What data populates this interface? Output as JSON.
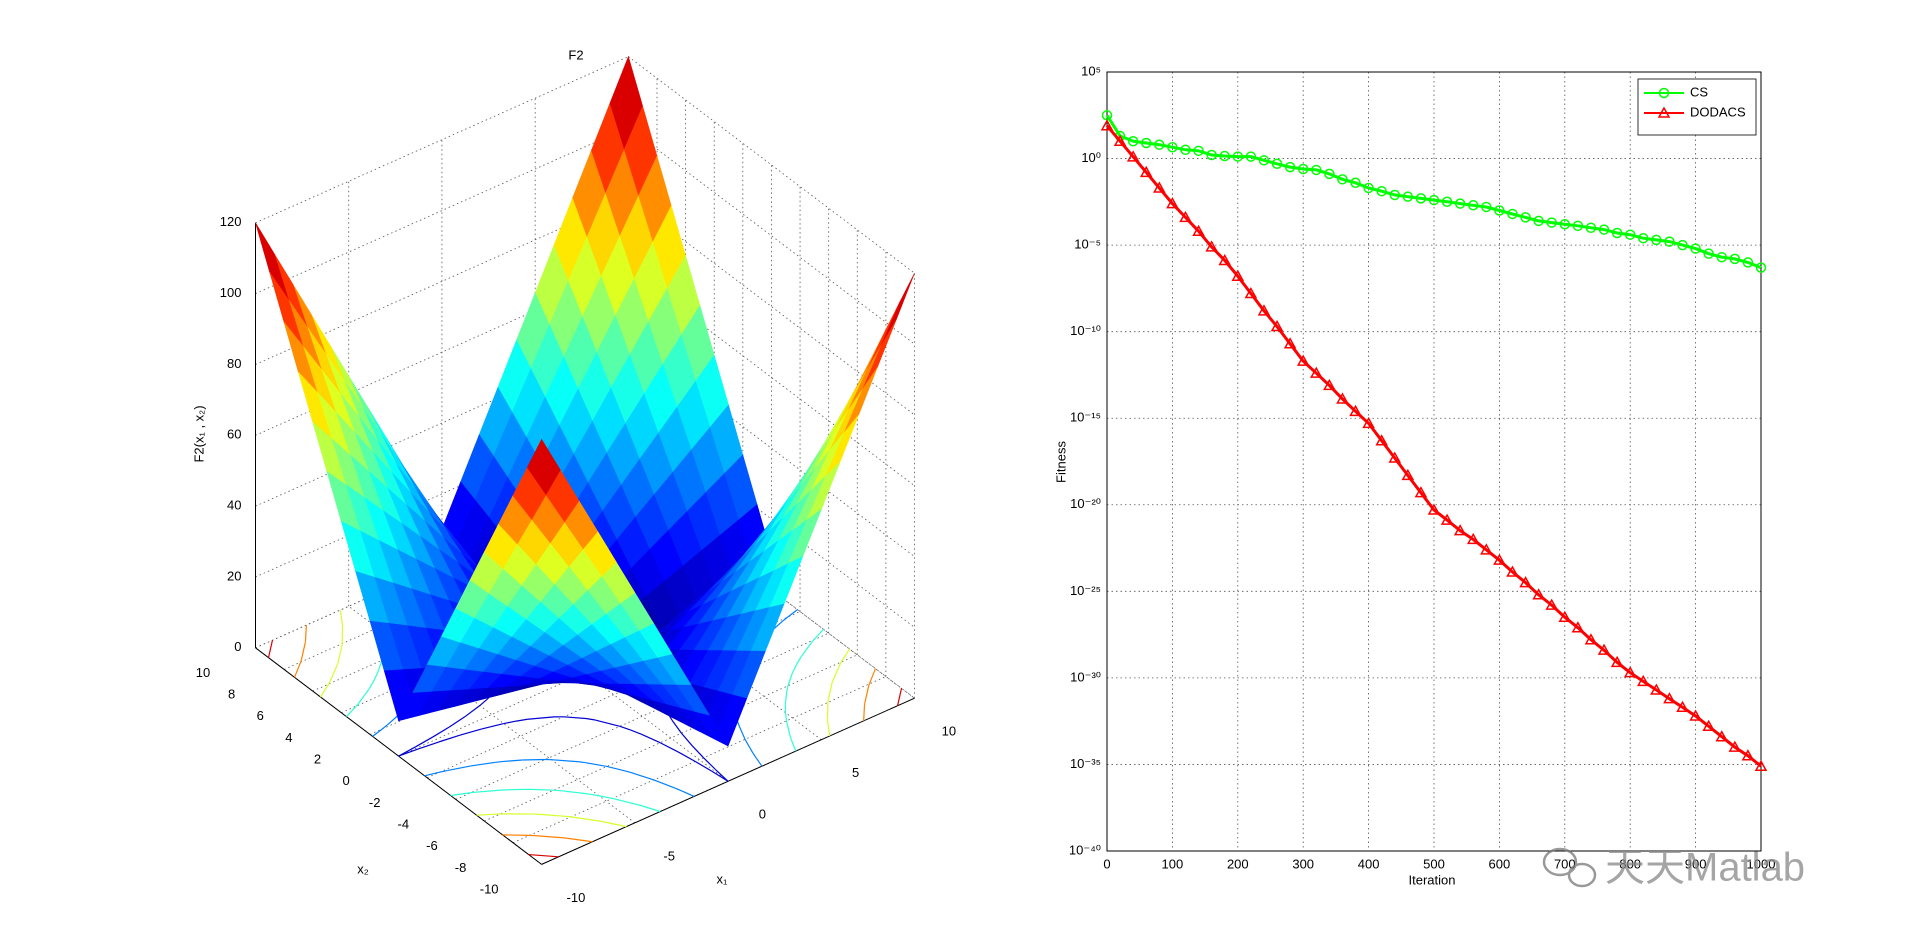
{
  "chart_data": [
    {
      "type": "surface",
      "title": "F2",
      "xlabel": "x₁",
      "ylabel": "x₂",
      "zlabel": "F2(x₁ , x₂)",
      "x": [
        -10,
        -9,
        -8,
        -7,
        -6,
        -5,
        -4,
        -3,
        -2,
        -1,
        0,
        1,
        2,
        3,
        4,
        5,
        6,
        7,
        8,
        9,
        10
      ],
      "y": [
        -10,
        -9,
        -8,
        -7,
        -6,
        -5,
        -4,
        -3,
        -2,
        -1,
        0,
        1,
        2,
        3,
        4,
        5,
        6,
        7,
        8,
        9,
        10
      ],
      "z": [
        [
          120,
          109,
          98,
          87,
          76,
          65,
          54,
          43,
          32,
          21,
          10,
          21,
          32,
          43,
          54,
          65,
          76,
          87,
          98,
          109,
          120
        ],
        [
          109,
          99,
          89,
          79,
          69,
          59,
          49,
          39,
          29,
          19,
          9,
          19,
          29,
          39,
          49,
          59,
          69,
          79,
          89,
          99,
          109
        ],
        [
          98,
          89,
          80,
          71,
          62,
          53,
          44,
          35,
          26,
          17,
          8,
          17,
          26,
          35,
          44,
          53,
          62,
          71,
          80,
          89,
          98
        ],
        [
          87,
          79,
          71,
          63,
          55,
          47,
          39,
          31,
          23,
          15,
          7,
          15,
          23,
          31,
          39,
          47,
          55,
          63,
          71,
          79,
          87
        ],
        [
          76,
          69,
          62,
          55,
          48,
          41,
          34,
          27,
          20,
          13,
          6,
          13,
          20,
          27,
          34,
          41,
          48,
          55,
          62,
          69,
          76
        ],
        [
          65,
          59,
          53,
          47,
          41,
          35,
          29,
          23,
          17,
          11,
          5,
          11,
          17,
          23,
          29,
          35,
          41,
          47,
          53,
          59,
          65
        ],
        [
          54,
          49,
          44,
          39,
          34,
          29,
          24,
          19,
          14,
          9,
          4,
          9,
          14,
          19,
          24,
          29,
          34,
          39,
          44,
          49,
          54
        ],
        [
          43,
          39,
          35,
          31,
          27,
          23,
          19,
          15,
          11,
          7,
          3,
          7,
          11,
          15,
          19,
          23,
          27,
          31,
          35,
          39,
          43
        ],
        [
          32,
          29,
          26,
          23,
          20,
          17,
          14,
          11,
          8,
          5,
          2,
          5,
          8,
          11,
          14,
          17,
          20,
          23,
          26,
          29,
          32
        ],
        [
          21,
          19,
          17,
          15,
          13,
          11,
          9,
          7,
          5,
          3,
          1,
          3,
          5,
          7,
          9,
          11,
          13,
          15,
          17,
          19,
          21
        ],
        [
          10,
          9,
          8,
          7,
          6,
          5,
          4,
          3,
          2,
          1,
          0,
          1,
          2,
          3,
          4,
          5,
          6,
          7,
          8,
          9,
          10
        ],
        [
          21,
          19,
          17,
          15,
          13,
          11,
          9,
          7,
          5,
          3,
          1,
          3,
          5,
          7,
          9,
          11,
          13,
          15,
          17,
          19,
          21
        ],
        [
          32,
          29,
          26,
          23,
          20,
          17,
          14,
          11,
          8,
          5,
          2,
          5,
          8,
          11,
          14,
          17,
          20,
          23,
          26,
          29,
          32
        ],
        [
          43,
          39,
          35,
          31,
          27,
          23,
          19,
          15,
          11,
          7,
          3,
          7,
          11,
          15,
          19,
          23,
          27,
          31,
          35,
          39,
          43
        ],
        [
          54,
          49,
          44,
          39,
          34,
          29,
          24,
          19,
          14,
          9,
          4,
          9,
          14,
          19,
          24,
          29,
          34,
          39,
          44,
          49,
          54
        ],
        [
          65,
          59,
          53,
          47,
          41,
          35,
          29,
          23,
          17,
          11,
          5,
          11,
          17,
          23,
          29,
          35,
          41,
          47,
          53,
          59,
          65
        ],
        [
          76,
          69,
          62,
          55,
          48,
          41,
          34,
          27,
          20,
          13,
          6,
          13,
          20,
          27,
          34,
          41,
          48,
          55,
          62,
          69,
          76
        ],
        [
          87,
          79,
          71,
          63,
          55,
          47,
          39,
          31,
          23,
          15,
          7,
          15,
          23,
          31,
          39,
          47,
          55,
          63,
          71,
          79,
          87
        ],
        [
          98,
          89,
          80,
          71,
          62,
          53,
          44,
          35,
          26,
          17,
          8,
          17,
          26,
          35,
          44,
          53,
          62,
          71,
          80,
          89,
          98
        ],
        [
          109,
          99,
          89,
          79,
          69,
          59,
          49,
          39,
          29,
          19,
          9,
          19,
          29,
          39,
          49,
          59,
          69,
          79,
          89,
          99,
          109
        ],
        [
          120,
          109,
          98,
          87,
          76,
          65,
          54,
          43,
          32,
          21,
          10,
          21,
          32,
          43,
          54,
          65,
          76,
          87,
          98,
          109,
          120
        ]
      ],
      "xlim": [
        -10,
        10
      ],
      "ylim": [
        -10,
        10
      ],
      "zlim": [
        0,
        120
      ],
      "xticks": [
        -10,
        -5,
        0,
        5,
        10
      ],
      "yticks": [
        -10,
        -8,
        -6,
        -4,
        -2,
        0,
        2,
        4,
        6,
        8,
        10
      ],
      "zticks": [
        0,
        20,
        40,
        60,
        80,
        100,
        120
      ],
      "view": [
        -37.5,
        30
      ],
      "colormap": "jet",
      "contour_levels": [
        10,
        30,
        50,
        70,
        90,
        110
      ],
      "grid": true
    },
    {
      "type": "line",
      "xlabel": "Iteration",
      "ylabel": "Fitness",
      "x": [
        0,
        20,
        40,
        60,
        80,
        100,
        120,
        140,
        160,
        180,
        200,
        220,
        240,
        260,
        280,
        300,
        320,
        340,
        360,
        380,
        400,
        420,
        440,
        460,
        480,
        500,
        520,
        540,
        560,
        580,
        600,
        620,
        640,
        660,
        680,
        700,
        720,
        740,
        760,
        780,
        800,
        820,
        840,
        860,
        880,
        900,
        920,
        940,
        960,
        980,
        1000
      ],
      "series": [
        {
          "name": "CS",
          "color": "#00ff00",
          "marker": "circle",
          "values": [
            316,
            20,
            10,
            7.9,
            6.3,
            4.5,
            3.2,
            2.8,
            1.6,
            1.4,
            1.3,
            1.3,
            0.79,
            0.5,
            0.32,
            0.25,
            0.22,
            0.13,
            0.063,
            0.04,
            0.02,
            0.013,
            0.0079,
            0.0063,
            0.005,
            0.004,
            0.0032,
            0.0025,
            0.002,
            0.0016,
            0.001,
            0.00063,
            0.0004,
            0.00025,
            0.0002,
            0.00016,
            0.00013,
            0.0001,
            7.9e-05,
            5e-05,
            4e-05,
            2.5e-05,
            2e-05,
            1.6e-05,
            1e-05,
            6.3e-06,
            3.2e-06,
            2e-06,
            1.6e-06,
            1e-06,
            5e-07
          ]
        },
        {
          "name": "DODACS",
          "color": "#ff0000",
          "marker": "triangle",
          "values": [
            79,
            10,
            1.26,
            0.16,
            0.02,
            0.0025,
            0.0004,
            6.3e-05,
            7.9e-06,
            1.3e-06,
            1.6e-07,
            1.6e-08,
            1.6e-09,
            2e-10,
            2e-11,
            2e-12,
            4e-13,
            7.9e-14,
            1.3e-14,
            2.5e-15,
            5e-16,
            5e-17,
            5e-18,
            5e-19,
            5e-20,
            5e-21,
            1.3e-21,
            3.2e-22,
            1e-22,
            2.5e-23,
            6.3e-24,
            1.3e-24,
            3.2e-25,
            6.3e-26,
            1.6e-26,
            3.2e-27,
            7.9e-28,
            1.6e-28,
            4e-29,
            7.9e-30,
            2e-30,
            6.3e-31,
            2e-31,
            6.3e-32,
            2e-32,
            6.3e-33,
            1.6e-33,
            4e-34,
            1e-34,
            3.2e-35,
            7.9e-36
          ]
        }
      ],
      "xlim": [
        0,
        1000
      ],
      "ylim": [
        1e-40,
        100000.0
      ],
      "yscale": "log",
      "xticks": [
        0,
        100,
        200,
        300,
        400,
        500,
        600,
        700,
        800,
        900,
        1000
      ],
      "yticks": [
        {
          "value": 100000.0,
          "label": "10⁵"
        },
        {
          "value": 1,
          "label": "10⁰"
        },
        {
          "value": 1e-05,
          "label": "10⁻⁵"
        },
        {
          "value": 1e-10,
          "label": "10⁻¹⁰"
        },
        {
          "value": 1e-15,
          "label": "10⁻¹⁵"
        },
        {
          "value": 1e-20,
          "label": "10⁻²⁰"
        },
        {
          "value": 1e-25,
          "label": "10⁻²⁵"
        },
        {
          "value": 1e-30,
          "label": "10⁻³⁰"
        },
        {
          "value": 1e-35,
          "label": "10⁻³⁵"
        },
        {
          "value": 1e-40,
          "label": "10⁻⁴⁰"
        }
      ],
      "grid": true,
      "legend": "upper right"
    }
  ],
  "watermark": "天天Matlab"
}
